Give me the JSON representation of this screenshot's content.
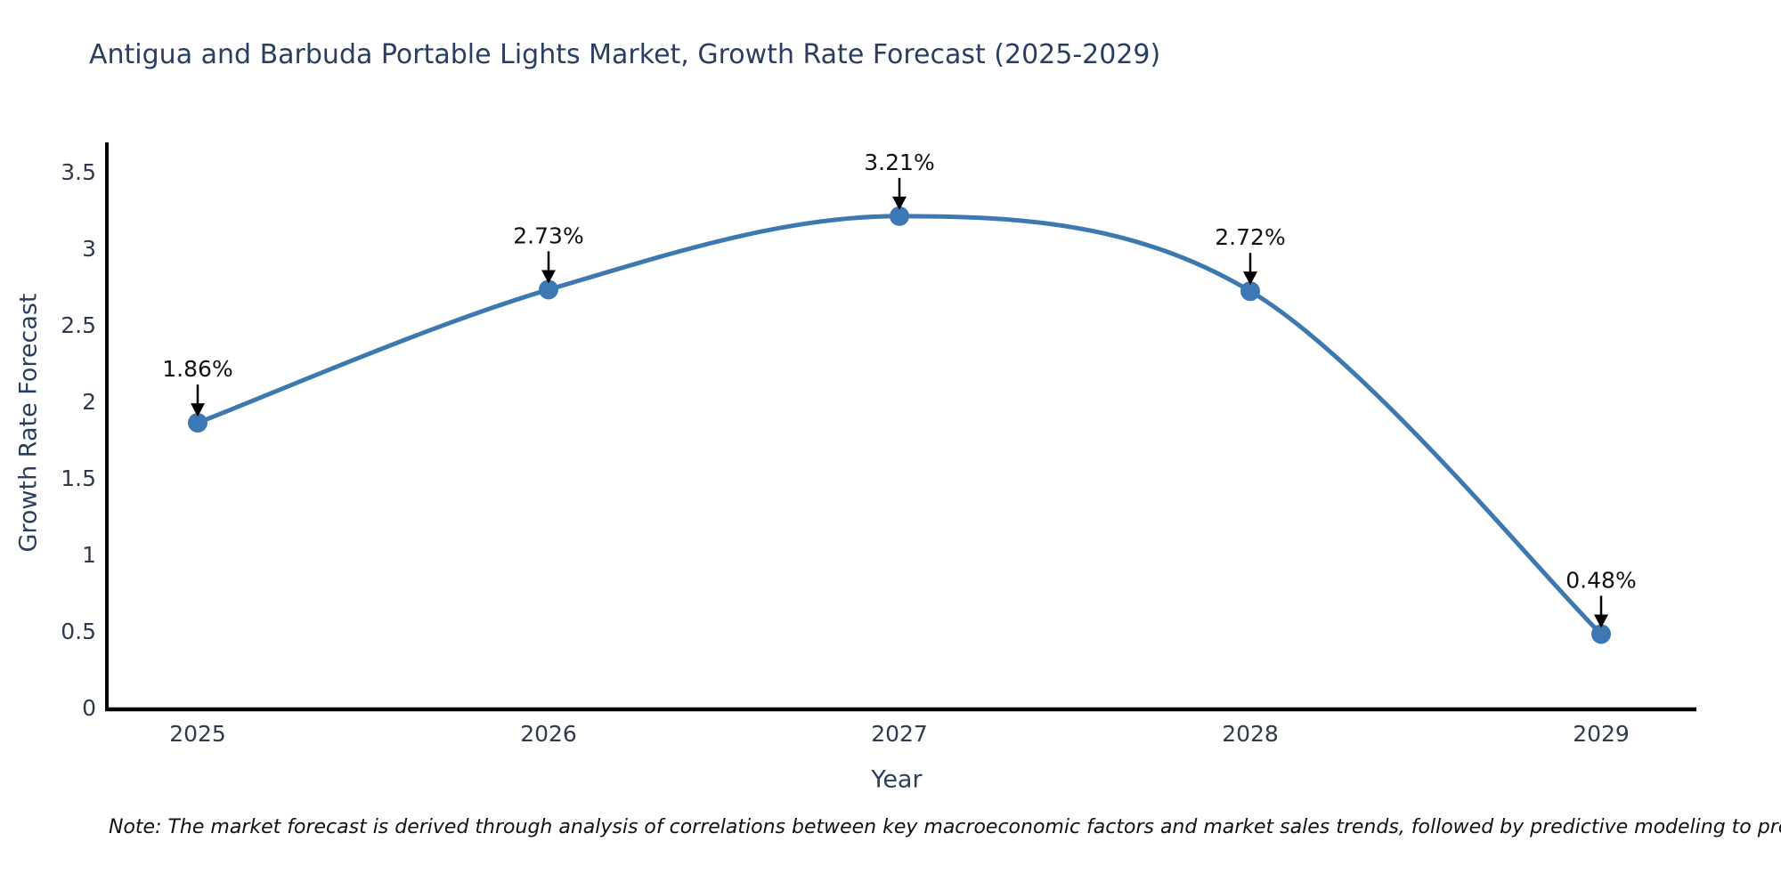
{
  "title": "Antigua and Barbuda Portable Lights Market, Growth Rate Forecast (2025-2029)",
  "note": "Note: The market forecast is derived through analysis of correlations between key macroeconomic factors and market sales trends, followed by predictive modeling to project future sales",
  "chart_data": {
    "type": "line",
    "title": "Antigua and Barbuda Portable Lights Market, Growth Rate Forecast (2025-2029)",
    "categories": [
      "2025",
      "2026",
      "2027",
      "2028",
      "2029"
    ],
    "values": [
      1.86,
      2.73,
      3.21,
      2.72,
      0.48
    ],
    "point_labels": [
      "1.86%",
      "2.73%",
      "3.21%",
      "2.72%",
      "0.48%"
    ],
    "xlabel": "Year",
    "ylabel": "Growth Rate Forecast",
    "ylim": [
      0,
      3.5
    ],
    "yticks": [
      0,
      0.5,
      1,
      1.5,
      2,
      2.5,
      3,
      3.5
    ],
    "ytick_labels": [
      "0",
      "0.5",
      "1",
      "1.5",
      "2",
      "2.5",
      "3",
      "3.5"
    ],
    "line_shape": "spline",
    "grid": false,
    "legend": "none",
    "line_color": "#3d79b0",
    "marker_color": "#3c78b4",
    "annotation_arrow_color": "#000000",
    "axis_line_color": "#000000",
    "text_color": "#2a3f5f"
  }
}
